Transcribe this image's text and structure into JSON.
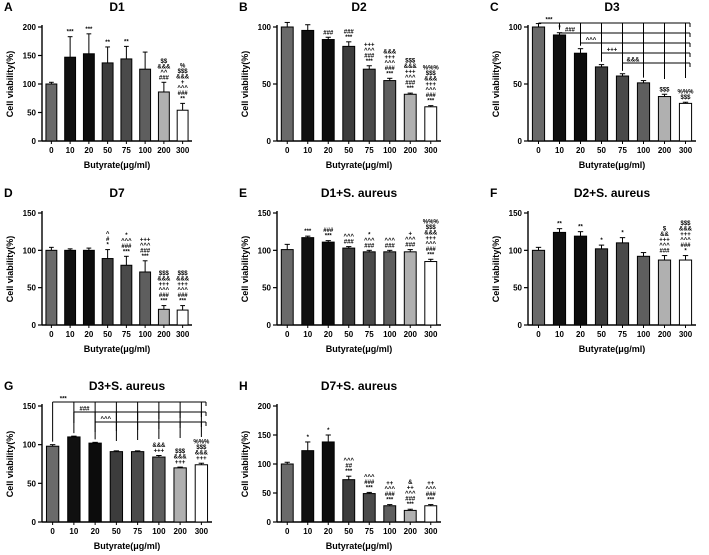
{
  "chart_data": [
    {
      "letter": "A",
      "type": "bar",
      "title": "D1",
      "xlabel": "Butyrate(μg/ml)",
      "ylabel": "Cell viability(%)",
      "ylim": [
        0,
        200
      ],
      "yticks": [
        0,
        50,
        100,
        150,
        200
      ],
      "categories": [
        "0",
        "10",
        "20",
        "50",
        "75",
        "100",
        "200",
        "300"
      ],
      "values": [
        100,
        147,
        153,
        137,
        144,
        126,
        86,
        54
      ],
      "errors": [
        3,
        36,
        35,
        28,
        22,
        30,
        17,
        12
      ],
      "annotations": [
        [],
        [
          "***"
        ],
        [
          "***"
        ],
        [
          "**"
        ],
        [
          "**"
        ],
        [],
        [
          "$$",
          "&&&",
          "^^",
          "###"
        ],
        [
          "%",
          "$$$",
          "&&&",
          "+",
          "^^^",
          "###",
          "**"
        ]
      ],
      "brackets": []
    },
    {
      "letter": "B",
      "type": "bar",
      "title": "D2",
      "xlabel": "Butyrate(μg/ml)",
      "ylabel": "Cell viability(%)",
      "ylim": [
        0,
        100
      ],
      "yticks": [
        0,
        50,
        100
      ],
      "categories": [
        "0",
        "10",
        "20",
        "50",
        "75",
        "100",
        "200",
        "300"
      ],
      "values": [
        100,
        97,
        89,
        83,
        63,
        53,
        41,
        30
      ],
      "errors": [
        4,
        5,
        2,
        4,
        3,
        2,
        1,
        1
      ],
      "annotations": [
        [],
        [],
        [
          "###"
        ],
        [
          "###",
          "***"
        ],
        [
          "+++",
          "^^^",
          "###",
          "***"
        ],
        [
          "&&&",
          "+++",
          "^^^",
          "###",
          "***"
        ],
        [
          "$$$",
          "&&&",
          "+++",
          "^^^",
          "###",
          "***"
        ],
        [
          "%%%",
          "$$$",
          "&&&",
          "+++",
          "^^^",
          "###",
          "***"
        ]
      ],
      "brackets": []
    },
    {
      "letter": "C",
      "type": "bar",
      "title": "D3",
      "xlabel": "Butyrate(μg/ml)",
      "ylabel": "Cell viability(%)",
      "ylim": [
        0,
        100
      ],
      "yticks": [
        0,
        50,
        100
      ],
      "categories": [
        "0",
        "10",
        "20",
        "50",
        "75",
        "100",
        "200",
        "300"
      ],
      "values": [
        100,
        93,
        77,
        65,
        57,
        51,
        39,
        33
      ],
      "errors": [
        3,
        2,
        4,
        2,
        2,
        2,
        2,
        1
      ],
      "annotations": [
        [],
        [
          "*"
        ],
        [],
        [],
        [],
        [],
        [
          "$$$"
        ],
        [
          "%%%",
          "$$$"
        ]
      ],
      "brackets": [
        {
          "from": 0,
          "label": "***"
        },
        {
          "from": 1,
          "label": "###"
        },
        {
          "from": 2,
          "label": "^^^"
        },
        {
          "from": 3,
          "label": "+++"
        },
        {
          "from": 4,
          "label": "&&&"
        }
      ]
    },
    {
      "letter": "D",
      "type": "bar",
      "title": "D7",
      "xlabel": "Butyrate(μg/ml)",
      "ylabel": "Cell viability(%)",
      "ylim": [
        0,
        150
      ],
      "yticks": [
        0,
        50,
        100,
        150
      ],
      "categories": [
        "0",
        "10",
        "20",
        "50",
        "75",
        "100",
        "200",
        "300"
      ],
      "values": [
        100,
        100,
        100,
        89,
        80,
        71,
        21,
        20
      ],
      "errors": [
        4,
        2,
        3,
        12,
        12,
        15,
        5,
        6
      ],
      "annotations": [
        [],
        [],
        [],
        [
          "^",
          "#",
          "*"
        ],
        [
          "*",
          "^^^",
          "###",
          "***"
        ],
        [
          "+++",
          "^^^",
          "###",
          "***"
        ],
        [
          "$$$",
          "&&&",
          "+++",
          "^^^",
          "###",
          "***"
        ],
        [
          "$$$",
          "&&&",
          "+++",
          "^^^",
          "###",
          "***"
        ]
      ],
      "brackets": []
    },
    {
      "letter": "E",
      "type": "bar",
      "title": "D1+S. aureus",
      "xlabel": "Butyrate(μg/ml)",
      "ylabel": "Cell viability(%)",
      "ylim": [
        0,
        150
      ],
      "yticks": [
        0,
        50,
        100,
        150
      ],
      "categories": [
        "0",
        "10",
        "20",
        "50",
        "75",
        "100",
        "200",
        "300"
      ],
      "values": [
        101,
        117,
        111,
        103,
        98,
        98,
        98,
        85
      ],
      "errors": [
        7,
        2,
        2,
        2,
        2,
        2,
        3,
        3
      ],
      "annotations": [
        [],
        [
          "***"
        ],
        [
          "###",
          "***"
        ],
        [
          "^^^",
          "###"
        ],
        [
          "*",
          "^^^",
          "###"
        ],
        [
          "^^^",
          "###"
        ],
        [
          "+",
          "^^^",
          "###"
        ],
        [
          "%%%",
          "$$$",
          "&&&",
          "+++",
          "^^^",
          "###",
          "***"
        ]
      ],
      "brackets": []
    },
    {
      "letter": "F",
      "type": "bar",
      "title": "D2+S. aureus",
      "xlabel": "Butyrate(μg/ml)",
      "ylabel": "Cell viability(%)",
      "ylim": [
        0,
        150
      ],
      "yticks": [
        0,
        50,
        100,
        150
      ],
      "categories": [
        "0",
        "10",
        "20",
        "50",
        "75",
        "100",
        "200",
        "300"
      ],
      "values": [
        100,
        124,
        119,
        102,
        110,
        92,
        87,
        87
      ],
      "errors": [
        4,
        5,
        6,
        5,
        7,
        5,
        6,
        6
      ],
      "annotations": [
        [],
        [
          "**"
        ],
        [
          "**"
        ],
        [
          "*"
        ],
        [
          "*"
        ],
        [],
        [
          "$",
          "&&",
          "+++",
          "^^^",
          "###"
        ],
        [
          "$$$",
          "&&&",
          "+++",
          "^^^",
          "###",
          "*"
        ]
      ],
      "brackets": []
    },
    {
      "letter": "G",
      "type": "bar",
      "title": "D3+S. aureus",
      "xlabel": "Butyrate(μg/ml)",
      "ylabel": "Cell viability(%)",
      "ylim": [
        0,
        150
      ],
      "yticks": [
        0,
        50,
        100,
        150
      ],
      "categories": [
        "0",
        "10",
        "20",
        "50",
        "75",
        "100",
        "200",
        "300"
      ],
      "values": [
        98,
        110,
        102,
        91,
        91,
        84,
        70,
        74
      ],
      "errors": [
        2,
        1,
        1,
        1,
        1,
        2,
        1,
        2
      ],
      "annotations": [
        [],
        [],
        [],
        [],
        [],
        [
          "&&&",
          "+++"
        ],
        [
          "$$$",
          "&&&",
          "+++"
        ],
        [
          "%%%",
          "$$$",
          "&&&",
          "+++"
        ]
      ],
      "brackets": [
        {
          "from": 0,
          "label": "***"
        },
        {
          "from": 1,
          "label": "###"
        },
        {
          "from": 2,
          "label": "^^^"
        }
      ]
    },
    {
      "letter": "H",
      "type": "bar",
      "title": "D7+S. aureus",
      "xlabel": "Butyrate(μg/ml)",
      "ylabel": "Cell viability(%)",
      "ylim": [
        0,
        200
      ],
      "yticks": [
        0,
        50,
        100,
        150,
        200
      ],
      "categories": [
        "0",
        "10",
        "20",
        "50",
        "75",
        "100",
        "200",
        "300"
      ],
      "values": [
        100,
        123,
        138,
        73,
        49,
        28,
        20,
        28
      ],
      "errors": [
        3,
        15,
        12,
        6,
        2,
        2,
        2,
        2
      ],
      "annotations": [
        [],
        [
          "*"
        ],
        [
          "*"
        ],
        [
          "^^^",
          "##",
          "***"
        ],
        [
          "^^^",
          "###",
          "***"
        ],
        [
          "++",
          "^^^",
          "###",
          "***"
        ],
        [
          "&",
          "++",
          "^^^",
          "###",
          "***"
        ],
        [
          "++",
          "^^^",
          "###",
          "***"
        ]
      ],
      "brackets": []
    }
  ]
}
